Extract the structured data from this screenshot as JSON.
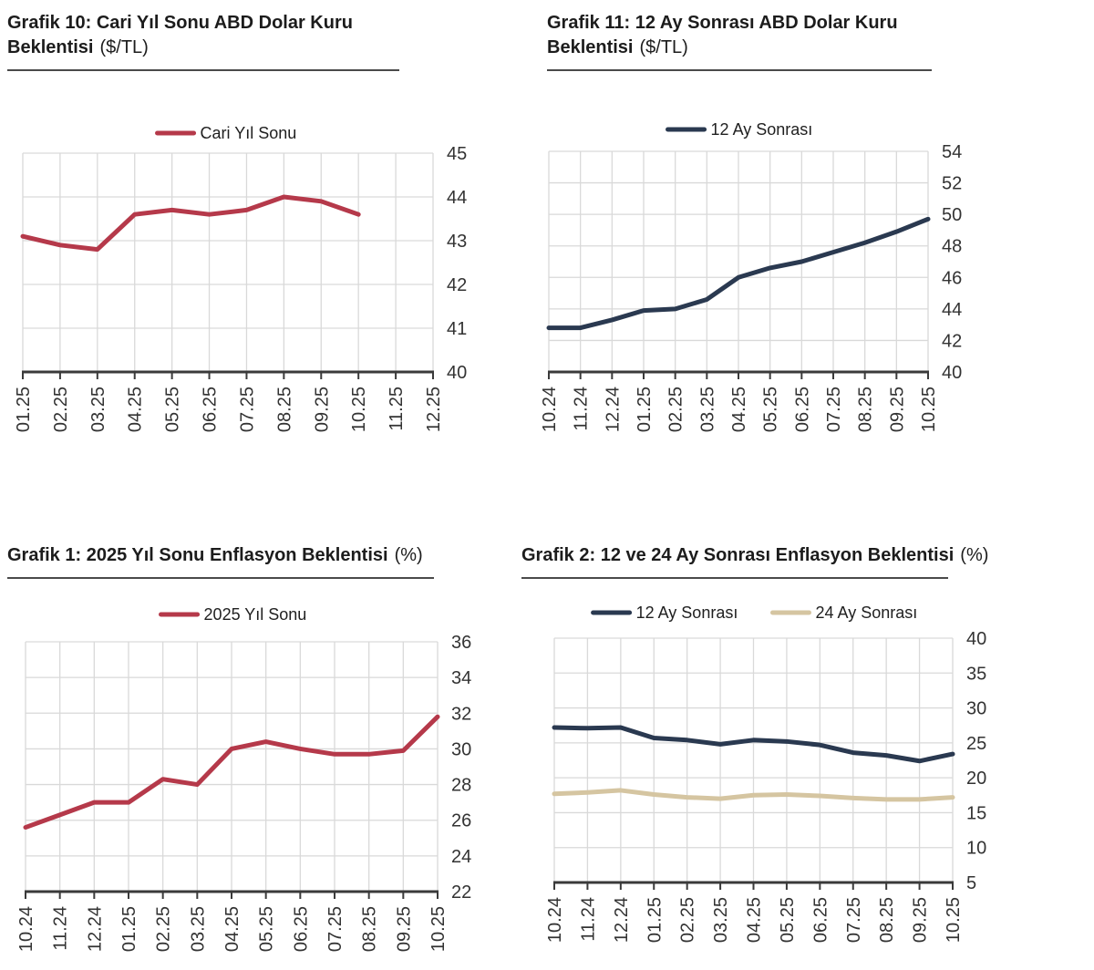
{
  "page": {
    "background": "#ffffff"
  },
  "colors": {
    "red": "#b5394a",
    "navy": "#2a3950",
    "tan": "#d5c5a1",
    "grid": "#d9d9d9",
    "axis": "#3a3a3a",
    "title_text": "#1c1c1c",
    "tick_text": "#333333"
  },
  "chart_data": [
    {
      "id": "grafik10",
      "type": "line",
      "title_bold": "Grafik 10: Cari Yıl Sonu ABD Dolar Kuru Beklentisi",
      "title_suffix": "($/TL)",
      "legend_position": "top",
      "grid": true,
      "categories": [
        "01.25",
        "02.25",
        "03.25",
        "04.25",
        "05.25",
        "06.25",
        "07.25",
        "08.25",
        "09.25",
        "10.25",
        "11.25",
        "12.25"
      ],
      "series": [
        {
          "name": "Cari Yıl Sonu",
          "color": "#b5394a",
          "values": [
            43.1,
            42.9,
            42.8,
            43.6,
            43.7,
            43.6,
            43.7,
            44.0,
            43.9,
            43.6,
            null,
            null
          ]
        }
      ],
      "ylim": [
        40,
        45
      ],
      "ytick_step": 1
    },
    {
      "id": "grafik11",
      "type": "line",
      "title_bold": "Grafik 11: 12 Ay Sonrası ABD Dolar Kuru Beklentisi",
      "title_suffix": "($/TL)",
      "legend_position": "top",
      "grid": true,
      "categories": [
        "10.24",
        "11.24",
        "12.24",
        "01.25",
        "02.25",
        "03.25",
        "04.25",
        "05.25",
        "06.25",
        "07.25",
        "08.25",
        "09.25",
        "10.25"
      ],
      "series": [
        {
          "name": "12 Ay Sonrası",
          "color": "#2a3950",
          "values": [
            42.8,
            42.8,
            43.3,
            43.9,
            44.0,
            44.6,
            46.0,
            46.6,
            47.0,
            47.6,
            48.2,
            48.9,
            49.7
          ]
        }
      ],
      "ylim": [
        40,
        54
      ],
      "ytick_step": 2
    },
    {
      "id": "grafik1",
      "type": "line",
      "title_bold": "Grafik 1: 2025 Yıl Sonu Enflasyon Beklentisi",
      "title_suffix": "(%)",
      "legend_position": "top",
      "grid": true,
      "categories": [
        "10.24",
        "11.24",
        "12.24",
        "01.25",
        "02.25",
        "03.25",
        "04.25",
        "05.25",
        "06.25",
        "07.25",
        "08.25",
        "09.25",
        "10.25"
      ],
      "series": [
        {
          "name": "2025 Yıl Sonu",
          "color": "#b5394a",
          "values": [
            25.6,
            26.3,
            27.0,
            27.0,
            28.3,
            28.0,
            30.0,
            30.4,
            30.0,
            29.7,
            29.7,
            29.9,
            31.8
          ]
        }
      ],
      "ylim": [
        22,
        36
      ],
      "ytick_step": 2
    },
    {
      "id": "grafik2",
      "type": "line",
      "title_bold": "Grafik 2: 12 ve 24 Ay Sonrası Enflasyon Beklentisi",
      "title_suffix": "(%)",
      "legend_position": "top",
      "grid": true,
      "categories": [
        "10.24",
        "11.24",
        "12.24",
        "01.25",
        "02.25",
        "03.25",
        "04.25",
        "05.25",
        "06.25",
        "07.25",
        "08.25",
        "09.25",
        "10.25"
      ],
      "series": [
        {
          "name": "12 Ay Sonrası",
          "color": "#2a3950",
          "values": [
            27.2,
            27.1,
            27.2,
            25.7,
            25.4,
            24.8,
            25.4,
            25.2,
            24.7,
            23.6,
            23.2,
            22.4,
            23.4
          ]
        },
        {
          "name": "24 Ay Sonrası",
          "color": "#d5c5a1",
          "values": [
            17.7,
            17.9,
            18.2,
            17.6,
            17.2,
            17.0,
            17.5,
            17.6,
            17.4,
            17.1,
            16.9,
            16.9,
            17.2
          ]
        }
      ],
      "ylim": [
        5,
        40
      ],
      "ytick_step": 5
    }
  ]
}
